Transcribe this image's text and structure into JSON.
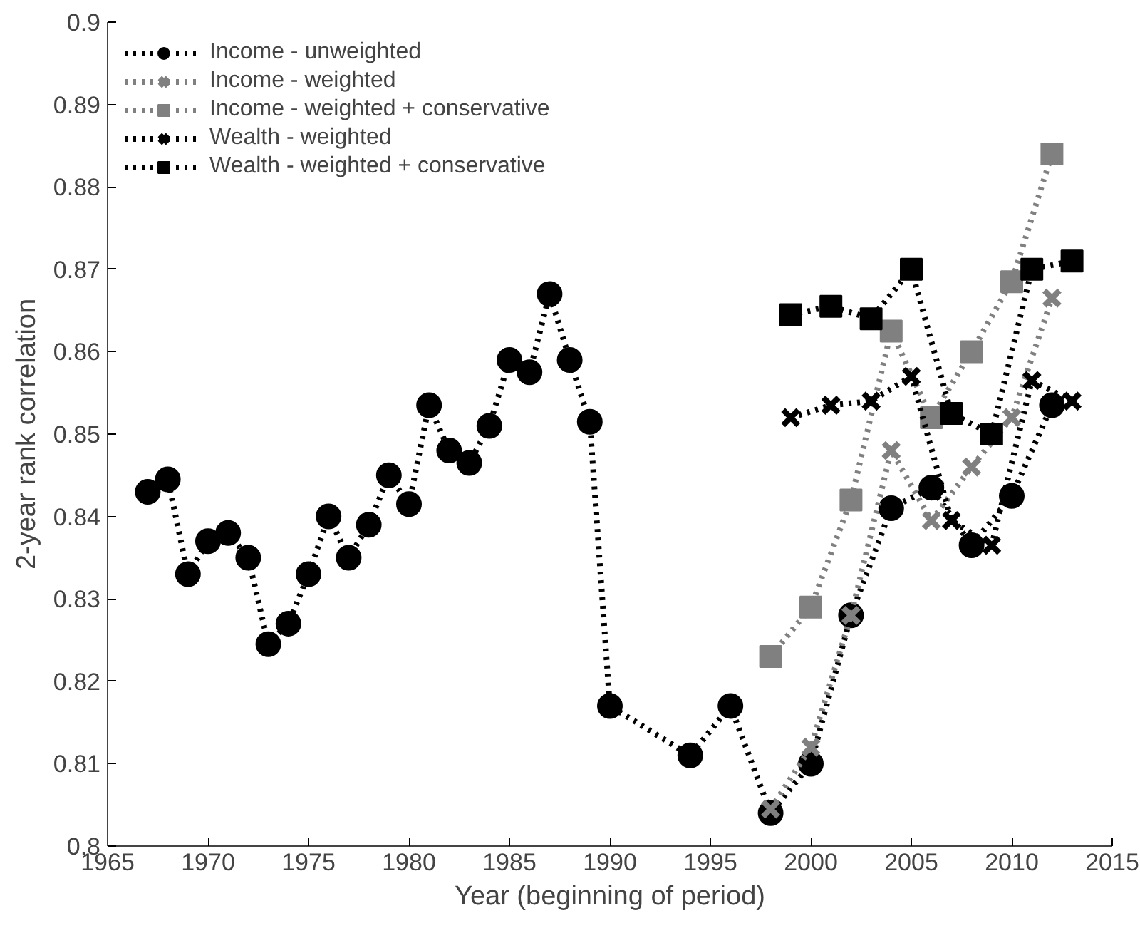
{
  "chart_data": {
    "type": "line",
    "xlabel": "Year (beginning of period)",
    "ylabel": "2-year rank correlation",
    "xlim": [
      1965,
      2015
    ],
    "xticks": [
      1965,
      1970,
      1975,
      1980,
      1985,
      1990,
      1995,
      2000,
      2005,
      2010,
      2015
    ],
    "ylim": [
      0.8,
      0.9
    ],
    "yticks": [
      0.8,
      0.81,
      0.82,
      0.83,
      0.84,
      0.85,
      0.86,
      0.87,
      0.88,
      0.89,
      0.9
    ],
    "grid": false,
    "legend": "top left",
    "line_style": "dotted",
    "series": [
      {
        "name": "Income - unweighted",
        "color": "#000000",
        "marker": "circle",
        "x": [
          1967,
          1968,
          1969,
          1970,
          1971,
          1972,
          1973,
          1974,
          1975,
          1976,
          1977,
          1978,
          1979,
          1980,
          1981,
          1982,
          1983,
          1984,
          1985,
          1986,
          1987,
          1988,
          1989,
          1990,
          1994,
          1996,
          1998,
          2000,
          2002,
          2004,
          2006,
          2008,
          2010,
          2012
        ],
        "values": [
          0.843,
          0.8445,
          0.833,
          0.837,
          0.838,
          0.835,
          0.8245,
          0.827,
          0.833,
          0.84,
          0.835,
          0.839,
          0.845,
          0.8415,
          0.8535,
          0.848,
          0.8465,
          0.851,
          0.859,
          0.8575,
          0.867,
          0.859,
          0.8515,
          0.817,
          0.811,
          0.817,
          0.804,
          0.81,
          0.828,
          0.841,
          0.8435,
          0.8365,
          0.8425,
          0.8535
        ]
      },
      {
        "name": "Income - weighted",
        "color": "#808080",
        "marker": "cross",
        "x": [
          1998,
          2000,
          2002,
          2004,
          2006,
          2008,
          2010,
          2012
        ],
        "values": [
          0.8045,
          0.812,
          0.828,
          0.848,
          0.8395,
          0.846,
          0.852,
          0.8665
        ]
      },
      {
        "name": "Income - weighted + conservative",
        "color": "#808080",
        "marker": "square",
        "x": [
          1998,
          2000,
          2002,
          2004,
          2006,
          2008,
          2010,
          2012
        ],
        "values": [
          0.823,
          0.829,
          0.842,
          0.8625,
          0.852,
          0.86,
          0.8685,
          0.884
        ]
      },
      {
        "name": "Wealth - weighted",
        "color": "#000000",
        "marker": "cross",
        "x": [
          1999,
          2001,
          2003,
          2005,
          2007,
          2009,
          2011,
          2013
        ],
        "values": [
          0.852,
          0.8535,
          0.854,
          0.857,
          0.8395,
          0.8365,
          0.8565,
          0.854
        ]
      },
      {
        "name": "Wealth - weighted + conservative",
        "color": "#000000",
        "marker": "square",
        "x": [
          1999,
          2001,
          2003,
          2005,
          2007,
          2009,
          2011,
          2013
        ],
        "values": [
          0.8645,
          0.8655,
          0.864,
          0.87,
          0.8525,
          0.85,
          0.87,
          0.871
        ]
      }
    ]
  }
}
